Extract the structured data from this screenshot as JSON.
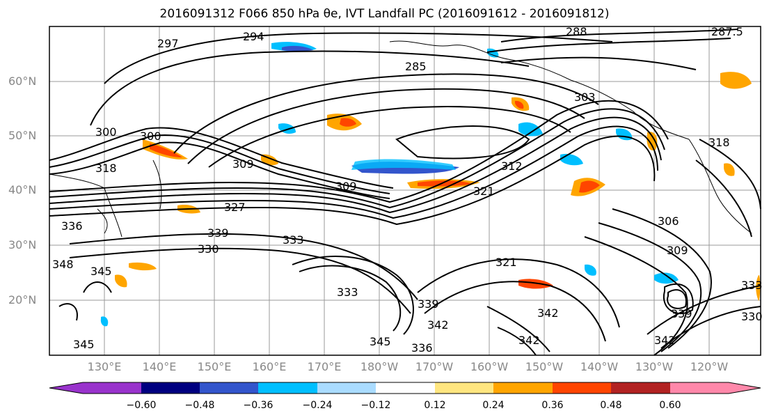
{
  "title": "2016091312 F066 850 hPa θe, IVT Landfall PC (2016091612 - 2016091812)",
  "map": {
    "lat_labels": [
      "60°N",
      "50°N",
      "40°N",
      "30°N",
      "20°N"
    ],
    "lon_labels": [
      "130°E",
      "140°E",
      "150°E",
      "160°E",
      "170°E",
      "180°W",
      "170°W",
      "160°W",
      "150°W",
      "140°W",
      "130°W",
      "120°W"
    ],
    "contour_labels": [
      "297",
      "294",
      "288",
      "287.5",
      "285",
      "303",
      "303",
      "306",
      "309",
      "312",
      "318",
      "318",
      "300",
      "300",
      "309",
      "321",
      "327",
      "330",
      "333",
      "333",
      "336",
      "339",
      "339",
      "339",
      "342",
      "342",
      "342",
      "345",
      "345",
      "348",
      "306",
      "309",
      "321",
      "330",
      "333",
      "336"
    ]
  },
  "colorbar": {
    "ticks": [
      "−0.60",
      "−0.48",
      "−0.36",
      "−0.24",
      "−0.12",
      "0.12",
      "0.24",
      "0.36",
      "0.48",
      "0.60"
    ],
    "colors": [
      "#9933cc",
      "#000080",
      "#3355cc",
      "#00bfff",
      "#aadcff",
      "#ffffff",
      "#ffe680",
      "#ffa500",
      "#ff4500",
      "#b22222",
      "#ff88aa"
    ]
  }
}
